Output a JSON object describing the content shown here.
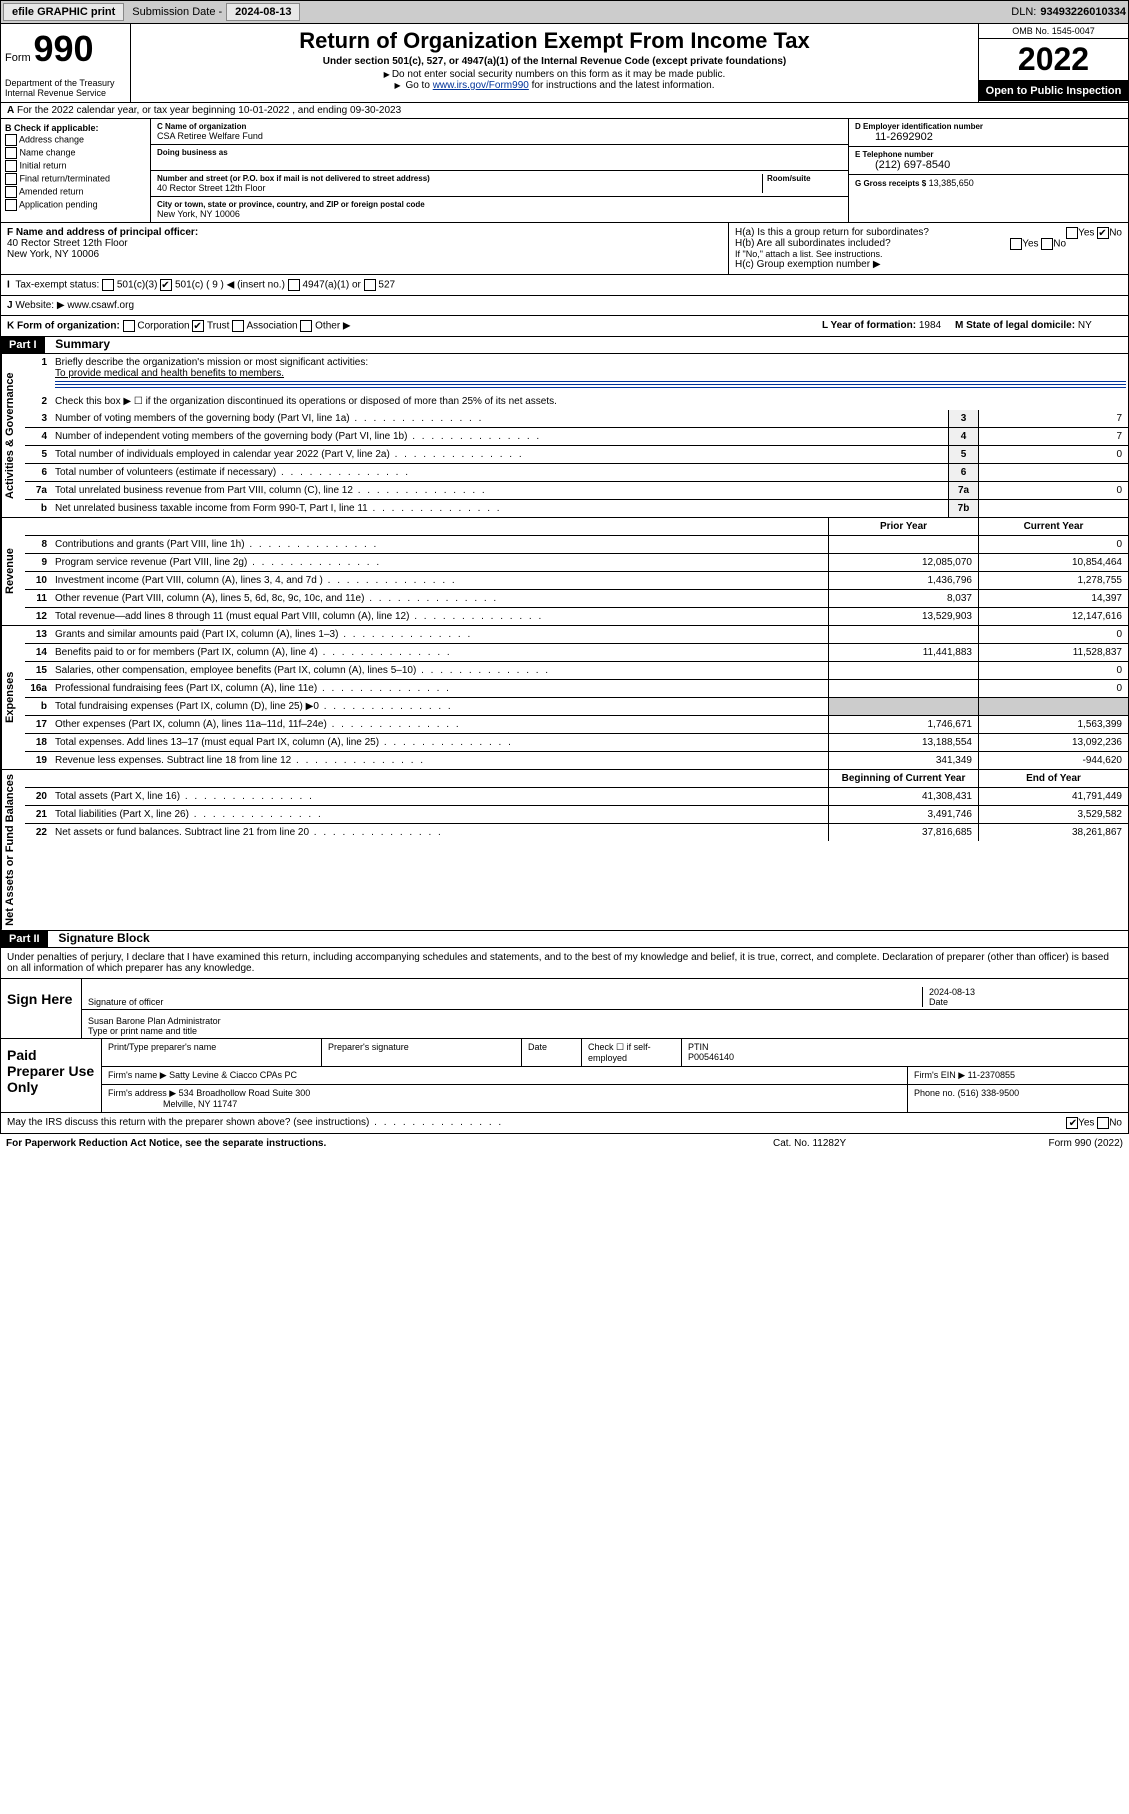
{
  "topbar": {
    "efile": "efile GRAPHIC print",
    "sub_lbl": "Submission Date -",
    "sub_val": "2024-08-13",
    "dln_lbl": "DLN:",
    "dln_val": "93493226010334"
  },
  "hdr": {
    "form": "Form",
    "num": "990",
    "dept": "Department of the Treasury Internal Revenue Service",
    "title": "Return of Organization Exempt From Income Tax",
    "sub": "Under section 501(c), 527, or 4947(a)(1) of the Internal Revenue Code (except private foundations)",
    "note1": "Do not enter social security numbers on this form as it may be made public.",
    "note2_a": "Go to ",
    "note2_link": "www.irs.gov/Form990",
    "note2_b": " for instructions and the latest information.",
    "omb": "OMB No. 1545-0047",
    "year": "2022",
    "open": "Open to Public Inspection"
  },
  "row_a": "For the 2022 calendar year, or tax year beginning 10-01-2022    , and ending 09-30-2023",
  "col_b": {
    "hdr": "B Check if applicable:",
    "items": [
      "Address change",
      "Name change",
      "Initial return",
      "Final return/terminated",
      "Amended return",
      "Application pending"
    ]
  },
  "col_c": {
    "name_lbl": "C Name of organization",
    "name": "CSA Retiree Welfare Fund",
    "dba_lbl": "Doing business as",
    "addr_lbl": "Number and street (or P.O. box if mail is not delivered to street address)",
    "room_lbl": "Room/suite",
    "addr": "40 Rector Street 12th Floor",
    "city_lbl": "City or town, state or province, country, and ZIP or foreign postal code",
    "city": "New York, NY  10006"
  },
  "col_d": {
    "ein_lbl": "D Employer identification number",
    "ein": "11-2692902",
    "tel_lbl": "E Telephone number",
    "tel": "(212) 697-8540",
    "gross_lbl": "G Gross receipts $",
    "gross": "13,385,650"
  },
  "row_f": {
    "lbl": "F Name and address of principal officer:",
    "addr1": "40 Rector Street 12th Floor",
    "addr2": "New York, NY  10006"
  },
  "row_h": {
    "ha": "H(a)  Is this a group return for subordinates?",
    "hb": "H(b)  Are all subordinates included?",
    "hb_note": "If \"No,\" attach a list. See instructions.",
    "hc": "H(c)  Group exemption number ▶",
    "yes": "Yes",
    "no": "No"
  },
  "row_i": {
    "lbl": "Tax-exempt status:",
    "opts": [
      "501(c)(3)",
      "501(c) ( 9 ) ◀ (insert no.)",
      "4947(a)(1) or",
      "527"
    ]
  },
  "row_j": {
    "lbl": "Website: ▶",
    "val": "www.csawf.org"
  },
  "row_k": {
    "lbl": "K Form of organization:",
    "opts": [
      "Corporation",
      "Trust",
      "Association",
      "Other ▶"
    ]
  },
  "row_l": {
    "lbl": "L Year of formation:",
    "val": "1984"
  },
  "row_m": {
    "lbl": "M State of legal domicile:",
    "val": "NY"
  },
  "part1": {
    "hdr": "Part I",
    "title": "Summary"
  },
  "gov": {
    "tab": "Activities & Governance",
    "q1": "Briefly describe the organization's mission or most significant activities:",
    "q1v": "To provide medical and health benefits to members.",
    "q2": "Check this box ▶ ☐  if the organization discontinued its operations or disposed of more than 25% of its net assets.",
    "rows": [
      {
        "n": "3",
        "t": "Number of voting members of the governing body (Part VI, line 1a)",
        "b": "3",
        "v": "7"
      },
      {
        "n": "4",
        "t": "Number of independent voting members of the governing body (Part VI, line 1b)",
        "b": "4",
        "v": "7"
      },
      {
        "n": "5",
        "t": "Total number of individuals employed in calendar year 2022 (Part V, line 2a)",
        "b": "5",
        "v": "0"
      },
      {
        "n": "6",
        "t": "Total number of volunteers (estimate if necessary)",
        "b": "6",
        "v": ""
      },
      {
        "n": "7a",
        "t": "Total unrelated business revenue from Part VIII, column (C), line 12",
        "b": "7a",
        "v": "0"
      },
      {
        "n": "b",
        "t": "Net unrelated business taxable income from Form 990-T, Part I, line 11",
        "b": "7b",
        "v": ""
      }
    ]
  },
  "rev": {
    "tab": "Revenue",
    "hdr_prior": "Prior Year",
    "hdr_curr": "Current Year",
    "rows": [
      {
        "n": "8",
        "t": "Contributions and grants (Part VIII, line 1h)",
        "p": "",
        "c": "0"
      },
      {
        "n": "9",
        "t": "Program service revenue (Part VIII, line 2g)",
        "p": "12,085,070",
        "c": "10,854,464"
      },
      {
        "n": "10",
        "t": "Investment income (Part VIII, column (A), lines 3, 4, and 7d )",
        "p": "1,436,796",
        "c": "1,278,755"
      },
      {
        "n": "11",
        "t": "Other revenue (Part VIII, column (A), lines 5, 6d, 8c, 9c, 10c, and 11e)",
        "p": "8,037",
        "c": "14,397"
      },
      {
        "n": "12",
        "t": "Total revenue—add lines 8 through 11 (must equal Part VIII, column (A), line 12)",
        "p": "13,529,903",
        "c": "12,147,616"
      }
    ]
  },
  "exp": {
    "tab": "Expenses",
    "rows": [
      {
        "n": "13",
        "t": "Grants and similar amounts paid (Part IX, column (A), lines 1–3)",
        "p": "",
        "c": "0"
      },
      {
        "n": "14",
        "t": "Benefits paid to or for members (Part IX, column (A), line 4)",
        "p": "11,441,883",
        "c": "11,528,837"
      },
      {
        "n": "15",
        "t": "Salaries, other compensation, employee benefits (Part IX, column (A), lines 5–10)",
        "p": "",
        "c": "0"
      },
      {
        "n": "16a",
        "t": "Professional fundraising fees (Part IX, column (A), line 11e)",
        "p": "",
        "c": "0"
      },
      {
        "n": "b",
        "t": "Total fundraising expenses (Part IX, column (D), line 25) ▶0",
        "p": "",
        "c": "",
        "shade": true
      },
      {
        "n": "17",
        "t": "Other expenses (Part IX, column (A), lines 11a–11d, 11f–24e)",
        "p": "1,746,671",
        "c": "1,563,399"
      },
      {
        "n": "18",
        "t": "Total expenses. Add lines 13–17 (must equal Part IX, column (A), line 25)",
        "p": "13,188,554",
        "c": "13,092,236"
      },
      {
        "n": "19",
        "t": "Revenue less expenses. Subtract line 18 from line 12",
        "p": "341,349",
        "c": "-944,620"
      }
    ]
  },
  "net": {
    "tab": "Net Assets or Fund Balances",
    "hdr_beg": "Beginning of Current Year",
    "hdr_end": "End of Year",
    "rows": [
      {
        "n": "20",
        "t": "Total assets (Part X, line 16)",
        "p": "41,308,431",
        "c": "41,791,449"
      },
      {
        "n": "21",
        "t": "Total liabilities (Part X, line 26)",
        "p": "3,491,746",
        "c": "3,529,582"
      },
      {
        "n": "22",
        "t": "Net assets or fund balances. Subtract line 21 from line 20",
        "p": "37,816,685",
        "c": "38,261,867"
      }
    ]
  },
  "part2": {
    "hdr": "Part II",
    "title": "Signature Block"
  },
  "sig": {
    "decl": "Under penalties of perjury, I declare that I have examined this return, including accompanying schedules and statements, and to the best of my knowledge and belief, it is true, correct, and complete. Declaration of preparer (other than officer) is based on all information of which preparer has any knowledge.",
    "here": "Sign Here",
    "sig_off": "Signature of officer",
    "date_lbl": "Date",
    "date": "2024-08-13",
    "name": "Susan Barone  Plan Administrator",
    "name_lbl": "Type or print name and title"
  },
  "prep": {
    "hdr": "Paid Preparer Use Only",
    "ptyp": "Print/Type preparer's name",
    "psig": "Preparer's signature",
    "pdate": "Date",
    "pcheck": "Check ☐ if self-employed",
    "ptin_lbl": "PTIN",
    "ptin": "P00546140",
    "firm_lbl": "Firm's name    ▶",
    "firm": "Satty Levine & Ciacco CPAs PC",
    "fein_lbl": "Firm's EIN ▶",
    "fein": "11-2370855",
    "faddr_lbl": "Firm's address ▶",
    "faddr1": "534 Broadhollow Road Suite 300",
    "faddr2": "Melville, NY  11747",
    "phone_lbl": "Phone no.",
    "phone": "(516) 338-9500"
  },
  "discuss": {
    "txt": "May the IRS discuss this return with the preparer shown above? (see instructions)",
    "yes": "Yes",
    "no": "No"
  },
  "ftr": {
    "l": "For Paperwork Reduction Act Notice, see the separate instructions.",
    "c": "Cat. No. 11282Y",
    "r": "Form 990 (2022)"
  }
}
